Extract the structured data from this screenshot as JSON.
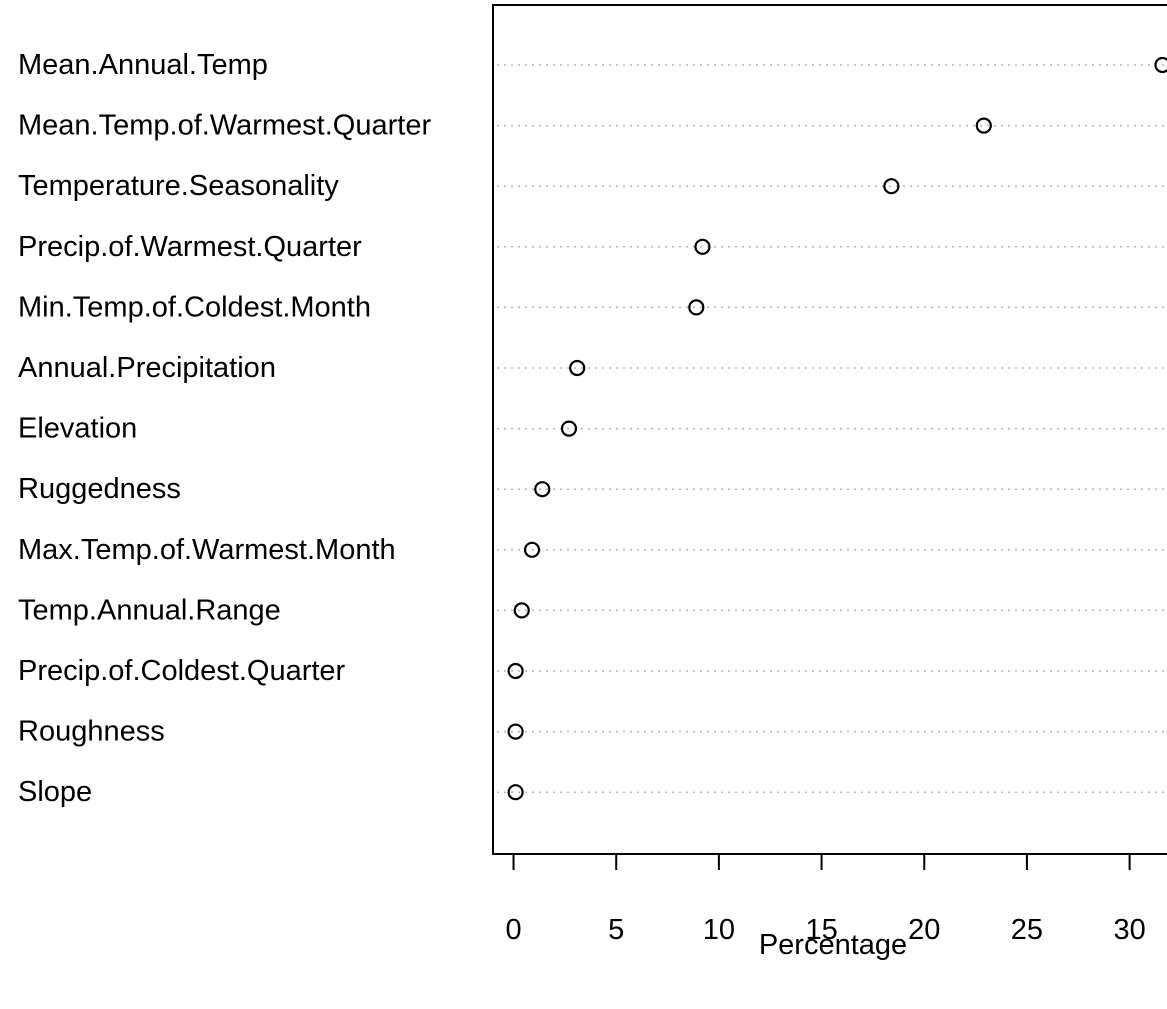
{
  "chart_data": {
    "type": "scatter",
    "categories": [
      "Mean.Annual.Temp",
      "Mean.Temp.of.Warmest.Quarter",
      "Temperature.Seasonality",
      "Precip.of.Warmest.Quarter",
      "Min.Temp.of.Coldest.Month",
      "Annual.Precipitation",
      "Elevation",
      "Ruggedness",
      "Max.Temp.of.Warmest.Month",
      "Temp.Annual.Range",
      "Precip.of.Coldest.Quarter",
      "Roughness",
      "Slope"
    ],
    "values": [
      31.6,
      22.9,
      18.4,
      9.2,
      8.9,
      3.1,
      2.7,
      1.4,
      0.9,
      0.4,
      0.1,
      0.1,
      0.1
    ],
    "xlabel": "Percentage",
    "ylabel": "",
    "xlim": [
      -1,
      32.6
    ],
    "xticks": [
      0,
      5,
      10,
      15,
      20,
      25,
      30
    ],
    "grid": false,
    "legend": "none",
    "colors": {
      "point": "#000000",
      "guide": "#b3b3b3",
      "axis": "#000000"
    }
  }
}
